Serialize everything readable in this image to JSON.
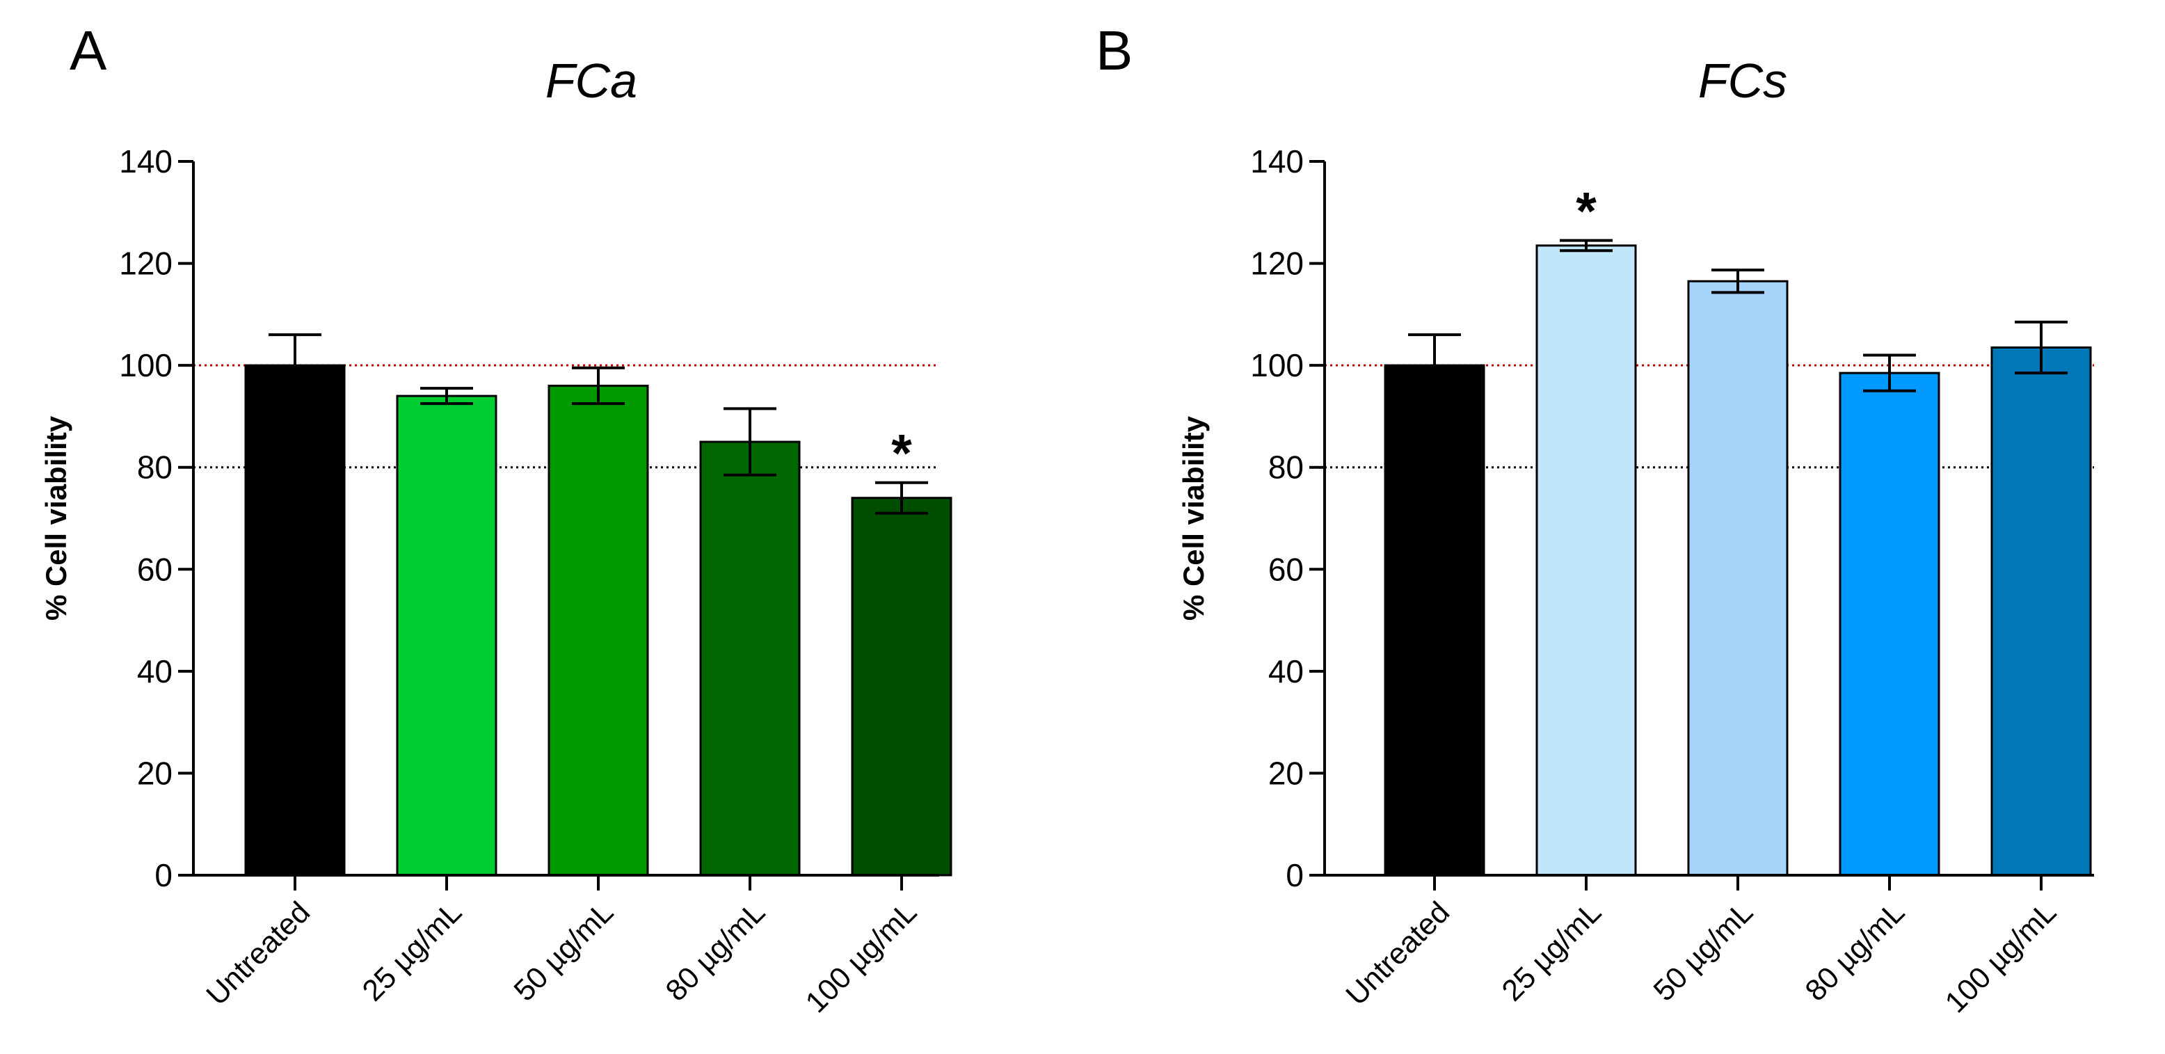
{
  "chart_data": [
    {
      "type": "bar",
      "panel_label": "A",
      "title": "FCa",
      "xlabel": "",
      "ylabel": "% Cell viability",
      "ylim": [
        0,
        140
      ],
      "yticks": [
        0,
        20,
        40,
        60,
        80,
        100,
        120,
        140
      ],
      "categories": [
        "Untreated",
        "25 µg/mL",
        "50 µg/mL",
        "80 µg/mL",
        "100 µg/mL"
      ],
      "values": [
        100,
        94,
        96,
        85,
        74
      ],
      "errors": [
        6,
        1.5,
        3.5,
        6.5,
        3
      ],
      "colors": [
        "#000000",
        "#00cc33",
        "#009900",
        "#006600",
        "#004d00"
      ],
      "significance": [
        "",
        "",
        "",
        "",
        "*"
      ],
      "reference_lines": [
        {
          "y": 100,
          "color": "#c00000",
          "style": "dotted"
        },
        {
          "y": 80,
          "color": "#000000",
          "style": "dotted"
        }
      ],
      "grid": false
    },
    {
      "type": "bar",
      "panel_label": "B",
      "title": "FCs",
      "xlabel": "",
      "ylabel": "% Cell viability",
      "ylim": [
        0,
        140
      ],
      "yticks": [
        0,
        20,
        40,
        60,
        80,
        100,
        120,
        140
      ],
      "categories": [
        "Untreated",
        "25 µg/mL",
        "50 µg/mL",
        "80 µg/mL",
        "100 µg/mL"
      ],
      "values": [
        100,
        123.5,
        116.5,
        98.5,
        103.5
      ],
      "errors": [
        6,
        1,
        2.2,
        3.5,
        5
      ],
      "colors": [
        "#000000",
        "#bfe6f9",
        "#a6d4fa",
        "#0099ff",
        "#0077b6"
      ],
      "significance": [
        "",
        "*",
        "",
        "",
        ""
      ],
      "reference_lines": [
        {
          "y": 100,
          "color": "#c00000",
          "style": "dotted"
        },
        {
          "y": 80,
          "color": "#000000",
          "style": "dotted"
        }
      ],
      "grid": false
    }
  ]
}
